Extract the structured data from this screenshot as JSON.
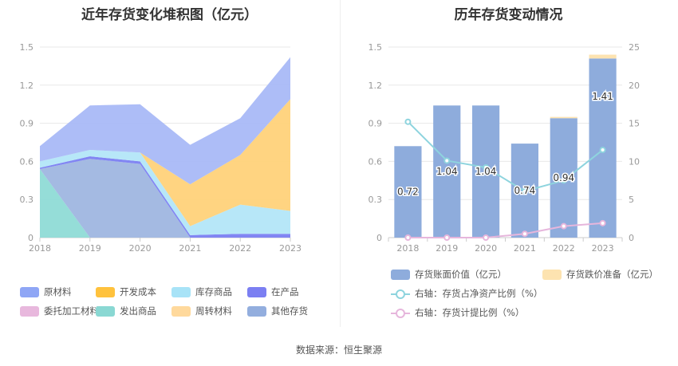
{
  "source": "数据来源：恒生聚源",
  "chart_data": [
    {
      "type": "area",
      "title": "近年存货变化堆积图（亿元）",
      "categories": [
        "2018",
        "2019",
        "2020",
        "2021",
        "2022",
        "2023"
      ],
      "y_ticks": [
        "0",
        "0.3",
        "0.6",
        "0.9",
        "1.2",
        "1.5"
      ],
      "ylim": [
        0,
        1.5
      ],
      "stacked": true,
      "legend_position": "bottom",
      "series": [
        {
          "name": "发出商品",
          "color": "#8fdbd6",
          "values": [
            0.54,
            0.0,
            0.0,
            0.0,
            0.0,
            0.0
          ]
        },
        {
          "name": "其他存货",
          "color": "#9fb6e0",
          "values": [
            0.0,
            0.62,
            0.58,
            0.0,
            0.0,
            0.0
          ]
        },
        {
          "name": "在产品",
          "color": "#7b7ff2",
          "values": [
            0.01,
            0.02,
            0.02,
            0.02,
            0.03,
            0.03
          ]
        },
        {
          "name": "库存商品",
          "color": "#b3e6f8",
          "values": [
            0.05,
            0.05,
            0.07,
            0.07,
            0.23,
            0.18
          ]
        },
        {
          "name": "开发成本",
          "color": "#ffd27a",
          "values": [
            0.0,
            0.0,
            0.0,
            0.33,
            0.39,
            0.88
          ]
        },
        {
          "name": "原材料",
          "color": "#a9b9f7",
          "values": [
            0.12,
            0.35,
            0.38,
            0.31,
            0.29,
            0.33
          ]
        },
        {
          "name": "委托加工材料",
          "color": "#e8b8dd",
          "values": [
            0,
            0,
            0,
            0,
            0,
            0
          ]
        },
        {
          "name": "周转材料",
          "color": "#ffe1a8",
          "values": [
            0,
            0,
            0,
            0,
            0,
            0
          ]
        }
      ],
      "legend": [
        {
          "name": "原材料",
          "color": "#8fa6f5"
        },
        {
          "name": "开发成本",
          "color": "#ffc23d"
        },
        {
          "name": "库存商品",
          "color": "#a8e3f7"
        },
        {
          "name": "在产品",
          "color": "#7b7ff2"
        },
        {
          "name": "委托加工材料",
          "color": "#e8b8dd"
        },
        {
          "name": "发出商品",
          "color": "#8ad8d3"
        },
        {
          "name": "周转材料",
          "color": "#ffd99c"
        },
        {
          "name": "其他存货",
          "color": "#93aede"
        }
      ]
    },
    {
      "type": "bar",
      "title": "历年存货变动情况",
      "categories": [
        "2018",
        "2019",
        "2020",
        "2021",
        "2022",
        "2023"
      ],
      "y_ticks": [
        "0",
        "0.3",
        "0.6",
        "0.9",
        "1.2",
        "1.5"
      ],
      "y2_ticks": [
        "0",
        "5",
        "10",
        "15",
        "20",
        "25"
      ],
      "ylim": [
        0,
        1.5
      ],
      "y2lim": [
        0,
        25
      ],
      "series": [
        {
          "name": "存货账面价值（亿元）",
          "kind": "bar",
          "color": "#8eacdc",
          "values": [
            0.72,
            1.04,
            1.04,
            0.74,
            0.94,
            1.41
          ],
          "labels": [
            "0.72",
            "1.04",
            "1.04",
            "0.74",
            "0.94",
            "1.41"
          ]
        },
        {
          "name": "存货跌价准备（亿元）",
          "kind": "bar",
          "color": "#fde3b0",
          "values": [
            0.0,
            0.0,
            0.0,
            0.0,
            0.01,
            0.03
          ]
        },
        {
          "name": "右轴：存货占净资产比例（%）",
          "kind": "line",
          "axis": "right",
          "color": "#8ed4de",
          "values": [
            15.2,
            10.1,
            9.2,
            6.1,
            7.5,
            11.5
          ]
        },
        {
          "name": "右轴：存货计提比例（%）",
          "kind": "line",
          "axis": "right",
          "color": "#e6b6dc",
          "values": [
            0.0,
            0.0,
            0.0,
            0.5,
            1.5,
            1.9
          ]
        }
      ]
    }
  ]
}
